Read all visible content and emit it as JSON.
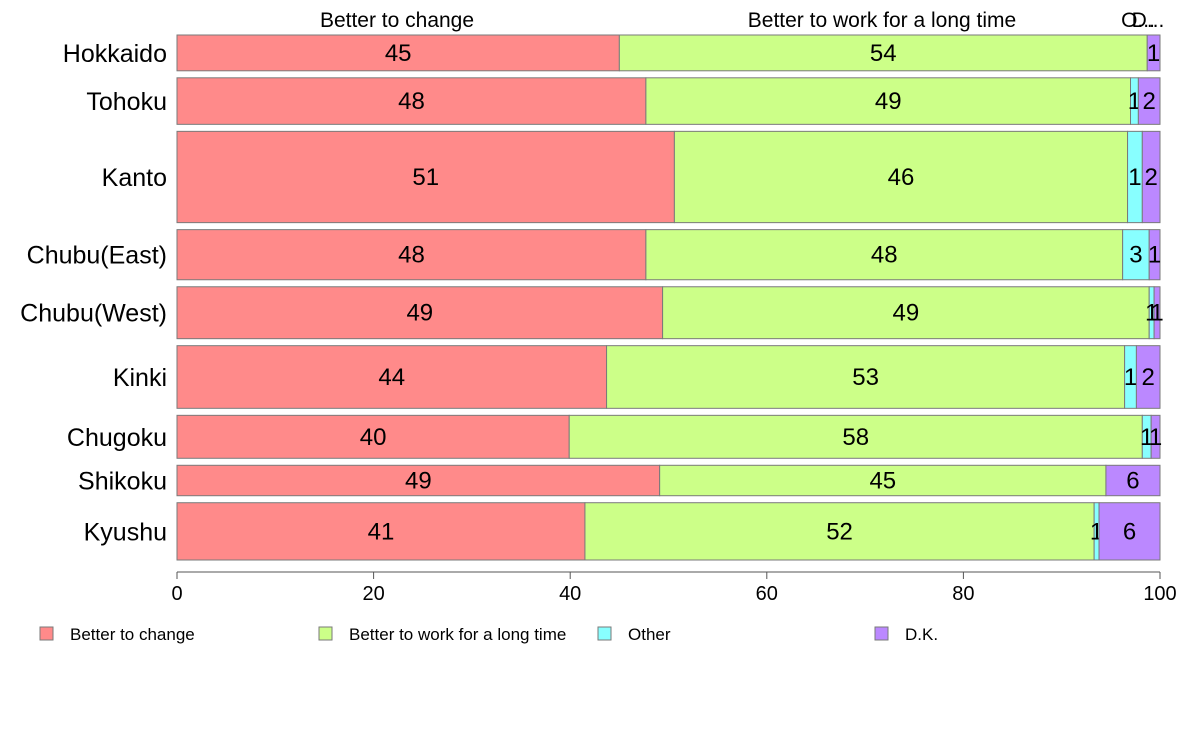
{
  "chart_data": {
    "type": "bar",
    "orientation": "horizontal",
    "stacked": true,
    "categories": [
      "Hokkaido",
      "Tohoku",
      "Kanto",
      "Chubu(East)",
      "Chubu(West)",
      "Kinki",
      "Chugoku",
      "Shikoku",
      "Kyushu"
    ],
    "category_weights": [
      1.0,
      1.3,
      2.55,
      1.4,
      1.45,
      1.75,
      1.2,
      0.85,
      1.6
    ],
    "series": [
      {
        "name": "Better to change",
        "color": "#ff8a8a",
        "values": [
          45,
          47.7,
          50.6,
          47.7,
          49.4,
          43.7,
          39.9,
          49.1,
          41.5
        ],
        "labels": [
          "45",
          "48",
          "51",
          "48",
          "49",
          "44",
          "40",
          "49",
          "41"
        ]
      },
      {
        "name": "Better to work for a long time",
        "color": "#ccff88",
        "values": [
          53.7,
          49.3,
          46.1,
          48.5,
          49.5,
          52.7,
          58.3,
          45.4,
          51.8
        ],
        "labels": [
          "54",
          "49",
          "46",
          "48",
          "49",
          "53",
          "58",
          "45",
          "52"
        ]
      },
      {
        "name": "Other",
        "color": "#88ffff",
        "values": [
          0,
          0.8,
          1.5,
          2.7,
          0.5,
          1.2,
          0.9,
          0,
          0.5
        ],
        "labels": [
          "",
          "1",
          "1",
          "3",
          "1",
          "1",
          "1",
          "",
          "1"
        ]
      },
      {
        "name": "D.K.",
        "color": "#bb88ff",
        "values": [
          1.3,
          2.2,
          1.8,
          1.1,
          0.6,
          2.4,
          0.9,
          5.5,
          6.2
        ],
        "labels": [
          "1",
          "2",
          "2",
          "1",
          "1",
          "2",
          "1",
          "6",
          "6"
        ]
      }
    ],
    "top_labels": [
      "Better to change",
      "Better to work for a long time",
      "O...",
      "D..."
    ],
    "xlim": [
      0,
      100
    ],
    "xticks": [
      0,
      20,
      40,
      60,
      80,
      100
    ],
    "legend_position": "bottom",
    "title": "",
    "xlabel": "",
    "ylabel": ""
  }
}
